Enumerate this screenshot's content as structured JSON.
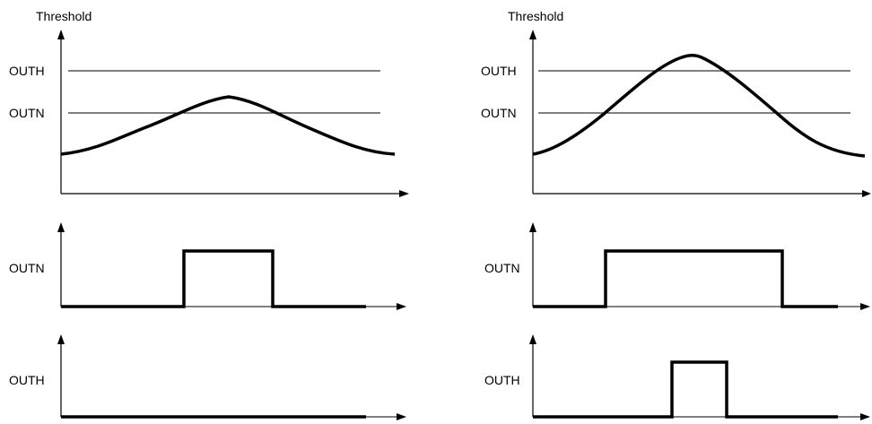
{
  "colors": {
    "signal": "#000000",
    "axis": "#000000",
    "background": "#ffffff"
  },
  "panels": [
    {
      "title": "Threshold",
      "thresholds": [
        {
          "label": "OUTH"
        },
        {
          "label": "OUTN"
        }
      ],
      "outputs": [
        {
          "label": "OUTN"
        },
        {
          "label": "OUTH"
        }
      ]
    },
    {
      "title": "Threshold",
      "thresholds": [
        {
          "label": "OUTH"
        },
        {
          "label": "OUTN"
        }
      ],
      "outputs": [
        {
          "label": "OUTN"
        },
        {
          "label": "OUTH"
        }
      ]
    }
  ]
}
